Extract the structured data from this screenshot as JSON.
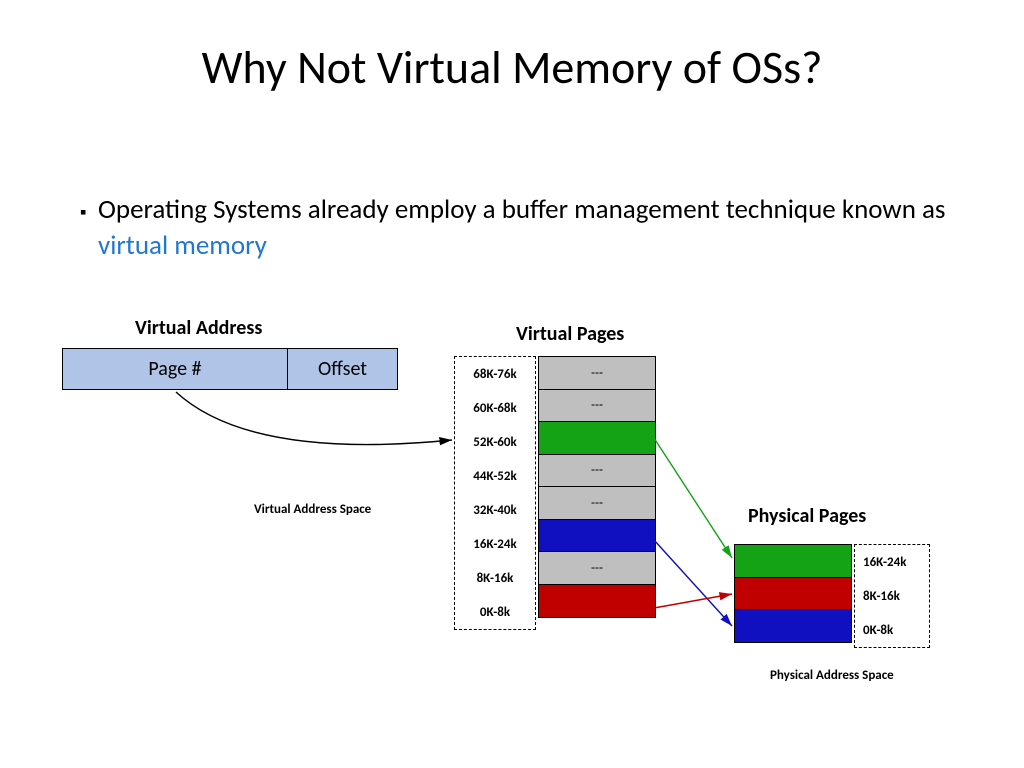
{
  "title": "Why Not Virtual Memory of OSs?",
  "bullet": {
    "prefix": "Operating Systems already employ a buffer management technique known as ",
    "highlight": "virtual memory"
  },
  "virtual_address": {
    "label": "Virtual Address",
    "page_label": "Page #",
    "offset_label": "Offset",
    "cell_bg": "#b0c4e8"
  },
  "vas_label": "Virtual Address Space",
  "virtual_pages": {
    "title": "Virtual Pages",
    "rows": [
      {
        "label": "68K-76k",
        "text": "---",
        "color": "#bfbfbf"
      },
      {
        "label": "60K-68k",
        "text": "---",
        "color": "#bfbfbf"
      },
      {
        "label": "52K-60k",
        "text": "",
        "color": "#14a314"
      },
      {
        "label": "44K-52k",
        "text": "---",
        "color": "#bfbfbf"
      },
      {
        "label": "32K-40k",
        "text": "---",
        "color": "#bfbfbf"
      },
      {
        "label": "16K-24k",
        "text": "",
        "color": "#1010c0"
      },
      {
        "label": "8K-16k",
        "text": "---",
        "color": "#bfbfbf"
      },
      {
        "label": "0K-8k",
        "text": "",
        "color": "#c00000"
      }
    ]
  },
  "physical_pages": {
    "title": "Physical Pages",
    "rows": [
      {
        "label": "16K-24k",
        "color": "#14a314"
      },
      {
        "label": "8K-16k",
        "color": "#c00000"
      },
      {
        "label": "0K-8k",
        "color": "#1010c0"
      }
    ]
  },
  "pas_label": "Physical Address Space",
  "arrows": {
    "page_to_vp": {
      "stroke": "#000000"
    },
    "green_arrow": {
      "stroke": "#14a314"
    },
    "blue_arrow": {
      "stroke": "#1010c0"
    },
    "red_arrow": {
      "stroke": "#c00000"
    }
  }
}
